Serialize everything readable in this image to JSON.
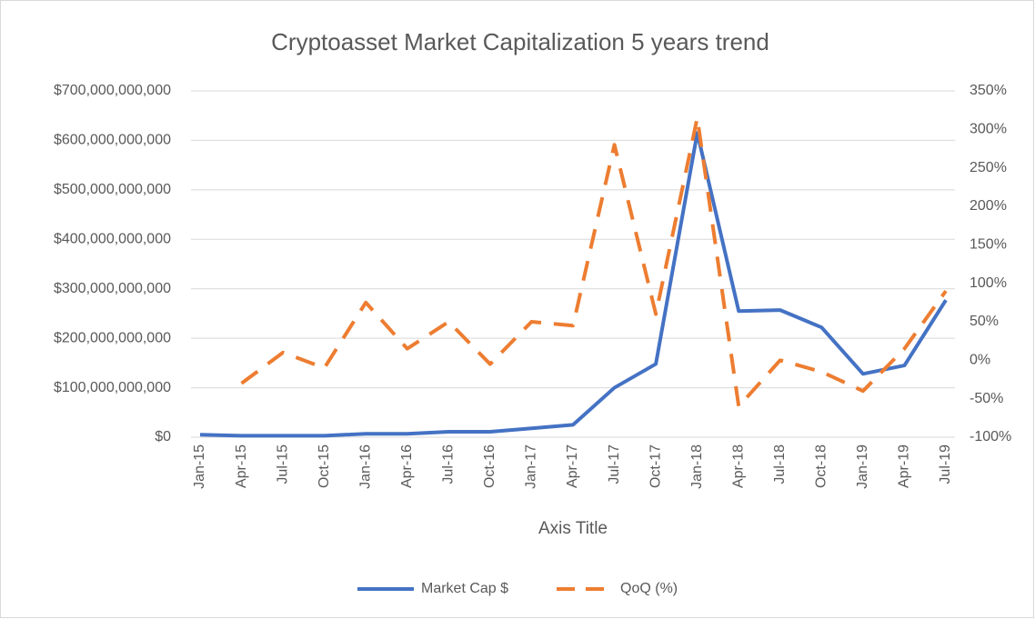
{
  "chart_data": {
    "type": "line",
    "title": "Cryptoasset  Market Capitalization 5 years trend",
    "x_axis_title": "Axis Title",
    "categories": [
      "Jan-15",
      "Apr-15",
      "Jul-15",
      "Oct-15",
      "Jan-16",
      "Apr-16",
      "Jul-16",
      "Oct-16",
      "Jan-17",
      "Apr-17",
      "Jul-17",
      "Oct-17",
      "Jan-18",
      "Apr-18",
      "Jul-18",
      "Oct-18",
      "Jan-19",
      "Apr-19",
      "Jul-19"
    ],
    "series": [
      {
        "name": "Market Cap $",
        "color": "#4472c4",
        "dashed": false,
        "values": [
          5000000000,
          3000000000,
          3000000000,
          3000000000,
          7000000000,
          7000000000,
          11000000000,
          11000000000,
          18000000000,
          25000000000,
          100000000000,
          148000000000,
          615000000000,
          255000000000,
          257000000000,
          222000000000,
          128000000000,
          145000000000,
          277000000000
        ]
      },
      {
        "name": "QoQ (%)",
        "color": "#ed7d31",
        "dashed": true,
        "axis": "y2",
        "values": [
          null,
          -30,
          10,
          -10,
          75,
          15,
          50,
          -5,
          50,
          45,
          280,
          60,
          315,
          -60,
          0,
          -15,
          -40,
          15,
          90
        ]
      }
    ],
    "ylim": [
      0,
      700000000000
    ],
    "yticks": [
      {
        "value": 0,
        "label": "$0"
      },
      {
        "value": 100000000000,
        "label": "$100,000,000,000"
      },
      {
        "value": 200000000000,
        "label": "$200,000,000,000"
      },
      {
        "value": 300000000000,
        "label": "$300,000,000,000"
      },
      {
        "value": 400000000000,
        "label": "$400,000,000,000"
      },
      {
        "value": 500000000000,
        "label": "$500,000,000,000"
      },
      {
        "value": 600000000000,
        "label": "$600,000,000,000"
      },
      {
        "value": 700000000000,
        "label": "$700,000,000,000"
      }
    ],
    "y2lim": [
      -100,
      350
    ],
    "y2ticks": [
      {
        "value": -100,
        "label": "-100%"
      },
      {
        "value": -50,
        "label": "-50%"
      },
      {
        "value": 0,
        "label": "0%"
      },
      {
        "value": 50,
        "label": "50%"
      },
      {
        "value": 100,
        "label": "100%"
      },
      {
        "value": 150,
        "label": "150%"
      },
      {
        "value": 200,
        "label": "200%"
      },
      {
        "value": 250,
        "label": "250%"
      },
      {
        "value": 300,
        "label": "300%"
      },
      {
        "value": 350,
        "label": "350%"
      }
    ],
    "grid": true,
    "legend": "bottom"
  }
}
